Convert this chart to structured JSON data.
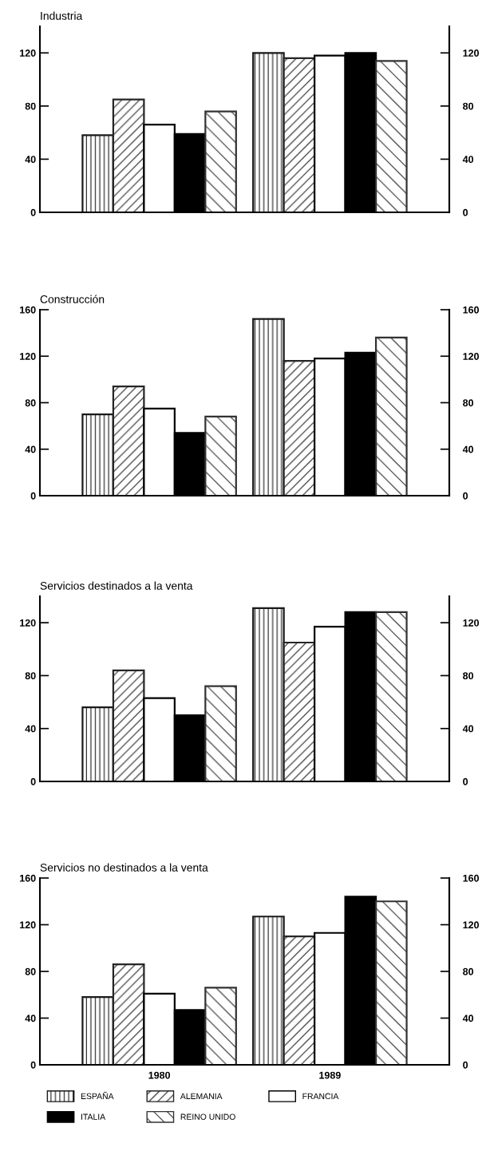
{
  "chart_data": [
    {
      "type": "bar",
      "title": "Industria",
      "categories": [
        null,
        null
      ],
      "tick_labels": "y",
      "ylim": [
        0,
        140
      ],
      "yticks": [
        0,
        40,
        80,
        120
      ],
      "y2lim": [
        0,
        140
      ],
      "y2ticks": [
        0,
        40,
        80,
        120
      ],
      "grid": false,
      "legend": false,
      "series": [
        {
          "color": "#1a1a1a",
          "values": [
            58,
            120
          ]
        },
        {
          "color": "#262626",
          "values": [
            85,
            116
          ]
        },
        {
          "color": "#ffffff",
          "values": [
            66,
            118
          ]
        },
        {
          "color": "#000000",
          "values": [
            59,
            120
          ]
        },
        {
          "color": "#333333",
          "values": [
            76,
            114
          ]
        }
      ]
    },
    {
      "type": "bar",
      "title": "Construcción",
      "categories": [
        null,
        null
      ],
      "tick_labels": "y",
      "ylim": [
        0,
        160
      ],
      "yticks": [
        0,
        40,
        80,
        120,
        160
      ],
      "y2lim": [
        0,
        160
      ],
      "y2ticks": [
        0,
        40,
        80,
        120,
        160
      ],
      "grid": false,
      "legend": false,
      "series": [
        {
          "color": "#1a1a1a",
          "values": [
            70,
            152
          ]
        },
        {
          "color": "#262626",
          "values": [
            94,
            116
          ]
        },
        {
          "color": "#ffffff",
          "values": [
            75,
            118
          ]
        },
        {
          "color": "#000000",
          "values": [
            54,
            123
          ]
        },
        {
          "color": "#333333",
          "values": [
            68,
            136
          ]
        }
      ]
    },
    {
      "type": "bar",
      "title": "Servicios destinados a la venta",
      "categories": [
        null,
        null
      ],
      "tick_labels": "y",
      "ylim": [
        0,
        140
      ],
      "yticks": [
        0,
        40,
        80,
        120
      ],
      "y2lim": [
        0,
        140
      ],
      "y2ticks": [
        0,
        40,
        80,
        120
      ],
      "grid": false,
      "legend": false,
      "series": [
        {
          "color": "#1a1a1a",
          "values": [
            56,
            131
          ]
        },
        {
          "color": "#262626",
          "values": [
            84,
            105
          ]
        },
        {
          "color": "#ffffff",
          "values": [
            63,
            117
          ]
        },
        {
          "color": "#000000",
          "values": [
            50,
            128
          ]
        },
        {
          "color": "#333333",
          "values": [
            72,
            128
          ]
        }
      ]
    },
    {
      "type": "bar",
      "title": "Servicios no destinados a la venta",
      "categories": [
        "1980",
        "1989"
      ],
      "ylim": [
        0,
        160
      ],
      "yticks": [
        0,
        40,
        80,
        120,
        160
      ],
      "y2lim": [
        0,
        160
      ],
      "y2ticks": [
        0,
        40,
        80,
        120,
        160
      ],
      "grid": false,
      "legend": "bottom",
      "series": [
        {
          "name": "ESPAÑA",
          "color": "#1a1a1a",
          "values": [
            58,
            127
          ]
        },
        {
          "name": "ALEMANIA",
          "color": "#262626",
          "values": [
            86,
            110
          ]
        },
        {
          "name": "FRANCIA",
          "color": "#ffffff",
          "values": [
            61,
            113
          ]
        },
        {
          "name": "ITALIA",
          "color": "#000000",
          "values": [
            47,
            144
          ]
        },
        {
          "name": "REINO UNIDO",
          "color": "#333333",
          "values": [
            66,
            140
          ]
        }
      ]
    }
  ]
}
